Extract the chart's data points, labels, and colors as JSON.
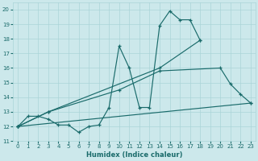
{
  "xlabel": "Humidex (Indice chaleur)",
  "bg_color": "#cce8eb",
  "grid_color": "#aad4d8",
  "line_color": "#1a6b6b",
  "xlim": [
    -0.5,
    23.5
  ],
  "ylim": [
    11,
    20.5
  ],
  "xticks": [
    0,
    1,
    2,
    3,
    4,
    5,
    6,
    7,
    8,
    9,
    10,
    11,
    12,
    13,
    14,
    15,
    16,
    17,
    18,
    19,
    20,
    21,
    22,
    23
  ],
  "yticks": [
    11,
    12,
    13,
    14,
    15,
    16,
    17,
    18,
    19,
    20
  ],
  "series": [
    {
      "x": [
        0,
        1,
        2,
        3,
        4,
        5,
        6,
        7,
        8,
        9,
        10,
        11,
        12,
        13,
        14,
        15,
        16,
        17,
        18
      ],
      "y": [
        12.0,
        12.7,
        12.7,
        12.5,
        12.1,
        12.1,
        11.6,
        12.0,
        12.1,
        13.3,
        17.5,
        16.0,
        13.3,
        13.3,
        18.9,
        19.9,
        19.3,
        19.3,
        17.9
      ]
    },
    {
      "x": [
        0,
        3,
        14,
        18
      ],
      "y": [
        12.0,
        13.0,
        16.0,
        17.9
      ]
    },
    {
      "x": [
        0,
        3,
        10,
        14,
        20,
        21,
        22,
        23
      ],
      "y": [
        12.0,
        13.0,
        14.5,
        15.8,
        16.0,
        14.9,
        14.2,
        13.6
      ]
    },
    {
      "x": [
        0,
        23
      ],
      "y": [
        12.0,
        13.6
      ]
    }
  ]
}
